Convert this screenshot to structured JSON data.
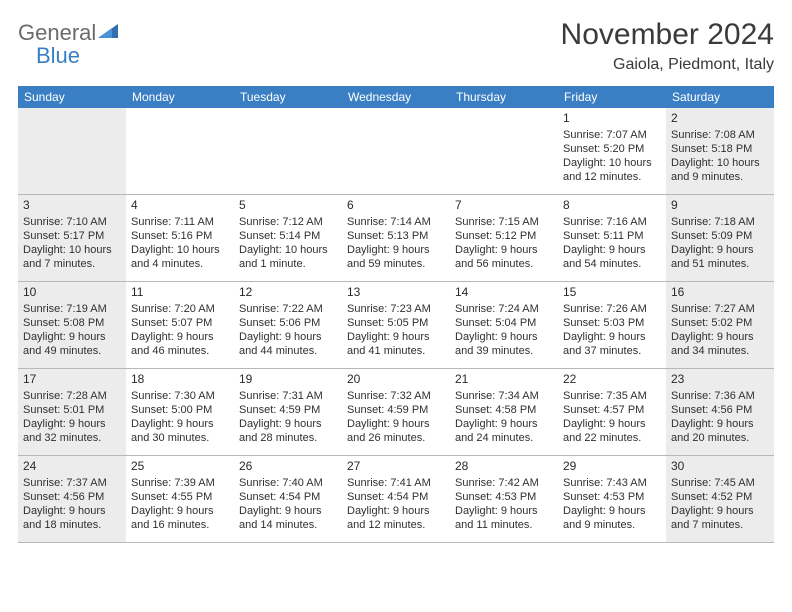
{
  "brand": {
    "text1": "General",
    "text2": "Blue",
    "color_general": "#6b6b6b",
    "color_blue": "#3a7fc4",
    "sail_color": "#2f6fb0"
  },
  "header": {
    "month_title": "November 2024",
    "location": "Gaiola, Piedmont, Italy"
  },
  "styling": {
    "dow_bg": "#3a7fc4",
    "dow_fg": "#ffffff",
    "shaded_bg": "#ececec",
    "border_color": "#b8b8b8",
    "text_color": "#303030",
    "page_bg": "#ffffff",
    "title_fontsize": 30,
    "location_fontsize": 16,
    "dow_fontsize": 12,
    "cell_fontsize": 11
  },
  "days_of_week": [
    "Sunday",
    "Monday",
    "Tuesday",
    "Wednesday",
    "Thursday",
    "Friday",
    "Saturday"
  ],
  "weeks": [
    [
      {
        "n": "",
        "sunrise": "",
        "sunset": "",
        "daylight": "",
        "shaded": true
      },
      {
        "n": "",
        "sunrise": "",
        "sunset": "",
        "daylight": "",
        "shaded": false
      },
      {
        "n": "",
        "sunrise": "",
        "sunset": "",
        "daylight": "",
        "shaded": false
      },
      {
        "n": "",
        "sunrise": "",
        "sunset": "",
        "daylight": "",
        "shaded": false
      },
      {
        "n": "",
        "sunrise": "",
        "sunset": "",
        "daylight": "",
        "shaded": false
      },
      {
        "n": "1",
        "sunrise": "Sunrise: 7:07 AM",
        "sunset": "Sunset: 5:20 PM",
        "daylight": "Daylight: 10 hours and 12 minutes.",
        "shaded": false
      },
      {
        "n": "2",
        "sunrise": "Sunrise: 7:08 AM",
        "sunset": "Sunset: 5:18 PM",
        "daylight": "Daylight: 10 hours and 9 minutes.",
        "shaded": true
      }
    ],
    [
      {
        "n": "3",
        "sunrise": "Sunrise: 7:10 AM",
        "sunset": "Sunset: 5:17 PM",
        "daylight": "Daylight: 10 hours and 7 minutes.",
        "shaded": true
      },
      {
        "n": "4",
        "sunrise": "Sunrise: 7:11 AM",
        "sunset": "Sunset: 5:16 PM",
        "daylight": "Daylight: 10 hours and 4 minutes.",
        "shaded": false
      },
      {
        "n": "5",
        "sunrise": "Sunrise: 7:12 AM",
        "sunset": "Sunset: 5:14 PM",
        "daylight": "Daylight: 10 hours and 1 minute.",
        "shaded": false
      },
      {
        "n": "6",
        "sunrise": "Sunrise: 7:14 AM",
        "sunset": "Sunset: 5:13 PM",
        "daylight": "Daylight: 9 hours and 59 minutes.",
        "shaded": false
      },
      {
        "n": "7",
        "sunrise": "Sunrise: 7:15 AM",
        "sunset": "Sunset: 5:12 PM",
        "daylight": "Daylight: 9 hours and 56 minutes.",
        "shaded": false
      },
      {
        "n": "8",
        "sunrise": "Sunrise: 7:16 AM",
        "sunset": "Sunset: 5:11 PM",
        "daylight": "Daylight: 9 hours and 54 minutes.",
        "shaded": false
      },
      {
        "n": "9",
        "sunrise": "Sunrise: 7:18 AM",
        "sunset": "Sunset: 5:09 PM",
        "daylight": "Daylight: 9 hours and 51 minutes.",
        "shaded": true
      }
    ],
    [
      {
        "n": "10",
        "sunrise": "Sunrise: 7:19 AM",
        "sunset": "Sunset: 5:08 PM",
        "daylight": "Daylight: 9 hours and 49 minutes.",
        "shaded": true
      },
      {
        "n": "11",
        "sunrise": "Sunrise: 7:20 AM",
        "sunset": "Sunset: 5:07 PM",
        "daylight": "Daylight: 9 hours and 46 minutes.",
        "shaded": false
      },
      {
        "n": "12",
        "sunrise": "Sunrise: 7:22 AM",
        "sunset": "Sunset: 5:06 PM",
        "daylight": "Daylight: 9 hours and 44 minutes.",
        "shaded": false
      },
      {
        "n": "13",
        "sunrise": "Sunrise: 7:23 AM",
        "sunset": "Sunset: 5:05 PM",
        "daylight": "Daylight: 9 hours and 41 minutes.",
        "shaded": false
      },
      {
        "n": "14",
        "sunrise": "Sunrise: 7:24 AM",
        "sunset": "Sunset: 5:04 PM",
        "daylight": "Daylight: 9 hours and 39 minutes.",
        "shaded": false
      },
      {
        "n": "15",
        "sunrise": "Sunrise: 7:26 AM",
        "sunset": "Sunset: 5:03 PM",
        "daylight": "Daylight: 9 hours and 37 minutes.",
        "shaded": false
      },
      {
        "n": "16",
        "sunrise": "Sunrise: 7:27 AM",
        "sunset": "Sunset: 5:02 PM",
        "daylight": "Daylight: 9 hours and 34 minutes.",
        "shaded": true
      }
    ],
    [
      {
        "n": "17",
        "sunrise": "Sunrise: 7:28 AM",
        "sunset": "Sunset: 5:01 PM",
        "daylight": "Daylight: 9 hours and 32 minutes.",
        "shaded": true
      },
      {
        "n": "18",
        "sunrise": "Sunrise: 7:30 AM",
        "sunset": "Sunset: 5:00 PM",
        "daylight": "Daylight: 9 hours and 30 minutes.",
        "shaded": false
      },
      {
        "n": "19",
        "sunrise": "Sunrise: 7:31 AM",
        "sunset": "Sunset: 4:59 PM",
        "daylight": "Daylight: 9 hours and 28 minutes.",
        "shaded": false
      },
      {
        "n": "20",
        "sunrise": "Sunrise: 7:32 AM",
        "sunset": "Sunset: 4:59 PM",
        "daylight": "Daylight: 9 hours and 26 minutes.",
        "shaded": false
      },
      {
        "n": "21",
        "sunrise": "Sunrise: 7:34 AM",
        "sunset": "Sunset: 4:58 PM",
        "daylight": "Daylight: 9 hours and 24 minutes.",
        "shaded": false
      },
      {
        "n": "22",
        "sunrise": "Sunrise: 7:35 AM",
        "sunset": "Sunset: 4:57 PM",
        "daylight": "Daylight: 9 hours and 22 minutes.",
        "shaded": false
      },
      {
        "n": "23",
        "sunrise": "Sunrise: 7:36 AM",
        "sunset": "Sunset: 4:56 PM",
        "daylight": "Daylight: 9 hours and 20 minutes.",
        "shaded": true
      }
    ],
    [
      {
        "n": "24",
        "sunrise": "Sunrise: 7:37 AM",
        "sunset": "Sunset: 4:56 PM",
        "daylight": "Daylight: 9 hours and 18 minutes.",
        "shaded": true
      },
      {
        "n": "25",
        "sunrise": "Sunrise: 7:39 AM",
        "sunset": "Sunset: 4:55 PM",
        "daylight": "Daylight: 9 hours and 16 minutes.",
        "shaded": false
      },
      {
        "n": "26",
        "sunrise": "Sunrise: 7:40 AM",
        "sunset": "Sunset: 4:54 PM",
        "daylight": "Daylight: 9 hours and 14 minutes.",
        "shaded": false
      },
      {
        "n": "27",
        "sunrise": "Sunrise: 7:41 AM",
        "sunset": "Sunset: 4:54 PM",
        "daylight": "Daylight: 9 hours and 12 minutes.",
        "shaded": false
      },
      {
        "n": "28",
        "sunrise": "Sunrise: 7:42 AM",
        "sunset": "Sunset: 4:53 PM",
        "daylight": "Daylight: 9 hours and 11 minutes.",
        "shaded": false
      },
      {
        "n": "29",
        "sunrise": "Sunrise: 7:43 AM",
        "sunset": "Sunset: 4:53 PM",
        "daylight": "Daylight: 9 hours and 9 minutes.",
        "shaded": false
      },
      {
        "n": "30",
        "sunrise": "Sunrise: 7:45 AM",
        "sunset": "Sunset: 4:52 PM",
        "daylight": "Daylight: 9 hours and 7 minutes.",
        "shaded": true
      }
    ]
  ]
}
